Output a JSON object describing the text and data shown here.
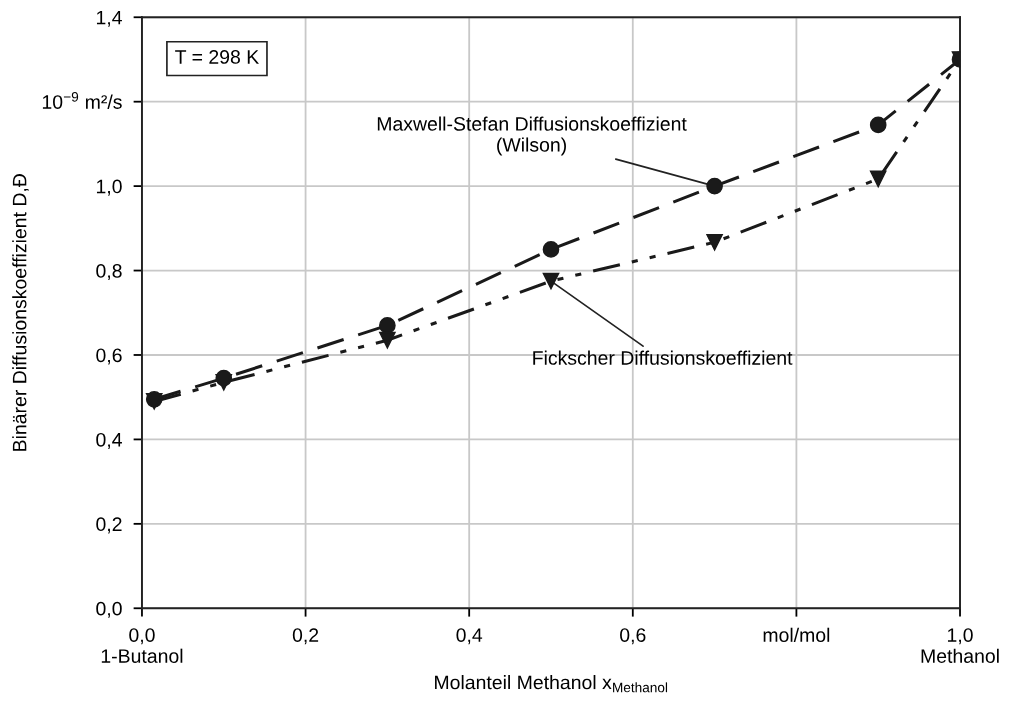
{
  "chart_data": {
    "type": "line",
    "xlabel": "Molanteil Methanol x$_{Methanol}$",
    "ylabel": "Binärer Diffusionskoeffizient D,Đ",
    "x": [
      0.015,
      0.1,
      0.3,
      0.5,
      0.7,
      0.9,
      1.0
    ],
    "series": [
      {
        "color": "#1a1a1a",
        "marker": "circle",
        "line_style": "dashed",
        "values": [
          0.495,
          0.545,
          0.67,
          0.85,
          1.0,
          1.145,
          1.3
        ]
      },
      {
        "color": "#1a1a1a",
        "marker": "triangle",
        "line_style": "dashdotdot",
        "values": [
          0.49,
          0.535,
          0.635,
          0.775,
          0.867,
          1.017,
          1.3
        ]
      }
    ],
    "xlim": [
      0,
      1.0
    ],
    "xticks": [
      {
        "value": 0,
        "label": "0,0\n1-Butanol"
      },
      {
        "value": 0.2,
        "label": "0,2"
      },
      {
        "value": 0.4,
        "label": "0,4"
      },
      {
        "value": 0.6,
        "label": "0,6"
      },
      {
        "value": 0.8,
        "label": "mol/mol"
      },
      {
        "value": 1.0,
        "label": "1,0\nMethanol"
      }
    ],
    "ylim": [
      0,
      1.4
    ],
    "yticks": [
      {
        "value": 0,
        "label": "0,0"
      },
      {
        "value": 0.2,
        "label": "0,2"
      },
      {
        "value": 0.4,
        "label": "0,4"
      },
      {
        "value": 0.6,
        "label": "0,6"
      },
      {
        "value": 0.8,
        "label": "0,8"
      },
      {
        "value": 1.0,
        "label": "1,0"
      },
      {
        "value": 1.2,
        "label": "10$^{−9}$ m²/s"
      },
      {
        "value": 1.4,
        "label": "1,4"
      }
    ],
    "grid": true,
    "annotations": [
      "T = 298 K",
      {
        "text": "Maxwell-Stefan Diffusionskoeffizient\n(Wilson)",
        "x": 0.7,
        "y": 1.0
      },
      {
        "text": "Fickscher Diffusionskoeffizient",
        "x": 0.5,
        "y": 0.775
      }
    ]
  }
}
